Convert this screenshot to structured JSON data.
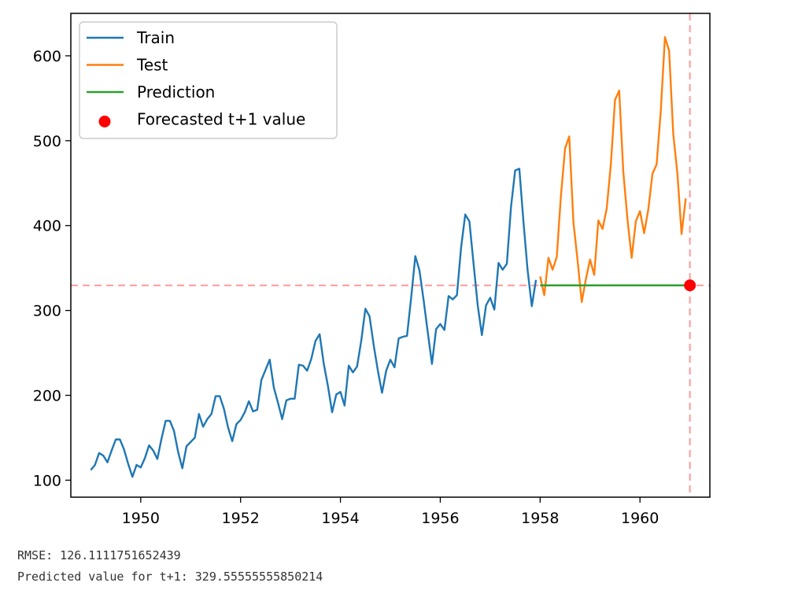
{
  "chart_data": {
    "type": "line",
    "title": "",
    "xlabel": "",
    "ylabel": "",
    "xlim": [
      1948.6,
      1961.4
    ],
    "ylim": [
      80,
      650
    ],
    "x_ticks": [
      1950,
      1952,
      1954,
      1956,
      1958,
      1960
    ],
    "x_tick_labels": [
      "1950",
      "1952",
      "1954",
      "1956",
      "1958",
      "1960"
    ],
    "y_ticks": [
      100,
      200,
      300,
      400,
      500,
      600
    ],
    "y_tick_labels": [
      "100",
      "200",
      "300",
      "400",
      "500",
      "600"
    ],
    "x_start": 1949.0,
    "x_step": 0.08333333,
    "series": [
      {
        "name": "Train",
        "color": "#1f77b4",
        "start_index": 0,
        "values": [
          112,
          118,
          132,
          129,
          121,
          135,
          148,
          148,
          136,
          119,
          104,
          118,
          115,
          126,
          141,
          135,
          125,
          149,
          170,
          170,
          158,
          133,
          114,
          140,
          145,
          150,
          178,
          163,
          172,
          178,
          199,
          199,
          184,
          162,
          146,
          166,
          171,
          180,
          193,
          181,
          183,
          218,
          230,
          242,
          209,
          191,
          172,
          194,
          196,
          196,
          236,
          235,
          229,
          243,
          264,
          272,
          237,
          211,
          180,
          201,
          204,
          188,
          235,
          227,
          234,
          264,
          302,
          293,
          259,
          229,
          203,
          229,
          242,
          233,
          267,
          269,
          270,
          315,
          364,
          347,
          312,
          274,
          237,
          278,
          284,
          277,
          317,
          313,
          318,
          374,
          413,
          405,
          355,
          306,
          271,
          306,
          315,
          301,
          356,
          348,
          355,
          422,
          465,
          467,
          404,
          347,
          305,
          336
        ]
      },
      {
        "name": "Test",
        "color": "#ff7f0e",
        "start_index": 108,
        "values": [
          340,
          318,
          362,
          348,
          363,
          435,
          491,
          505,
          404,
          359,
          310,
          337,
          360,
          342,
          406,
          396,
          420,
          472,
          548,
          559,
          463,
          407,
          362,
          405,
          417,
          391,
          419,
          461,
          472,
          535,
          622,
          606,
          508,
          461,
          390,
          432
        ]
      },
      {
        "name": "Prediction",
        "color": "#2ca02c",
        "start_index": 108,
        "constant_value": 329.55555555850214,
        "count": 36
      }
    ],
    "forecast_point": {
      "name": "Forecasted t+1 value",
      "color": "#ff0000",
      "x": 1961.0,
      "y": 329.55555555850214
    },
    "reference_lines": {
      "horizontal_y": 329.55555555850214,
      "vertical_x": 1961.0,
      "color": "#ff9999",
      "style": "dashed"
    },
    "legend": {
      "position": "top-left",
      "entries": [
        "Train",
        "Test",
        "Prediction",
        "Forecasted t+1 value"
      ]
    }
  },
  "output": {
    "rmse_line": "RMSE: 126.1111751652439",
    "prediction_line": "Predicted value for t+1: 329.55555555850214"
  }
}
